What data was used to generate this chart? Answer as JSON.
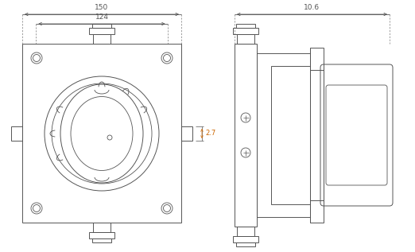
{
  "bg_color": "#ffffff",
  "lc": "#555555",
  "orange": "#cc6600",
  "fig_w": 5.22,
  "fig_h": 3.17,
  "dpi": 100,
  "dim_150": "150",
  "dim_124": "124",
  "dim_106": "10.6",
  "dim_27": "2.7"
}
